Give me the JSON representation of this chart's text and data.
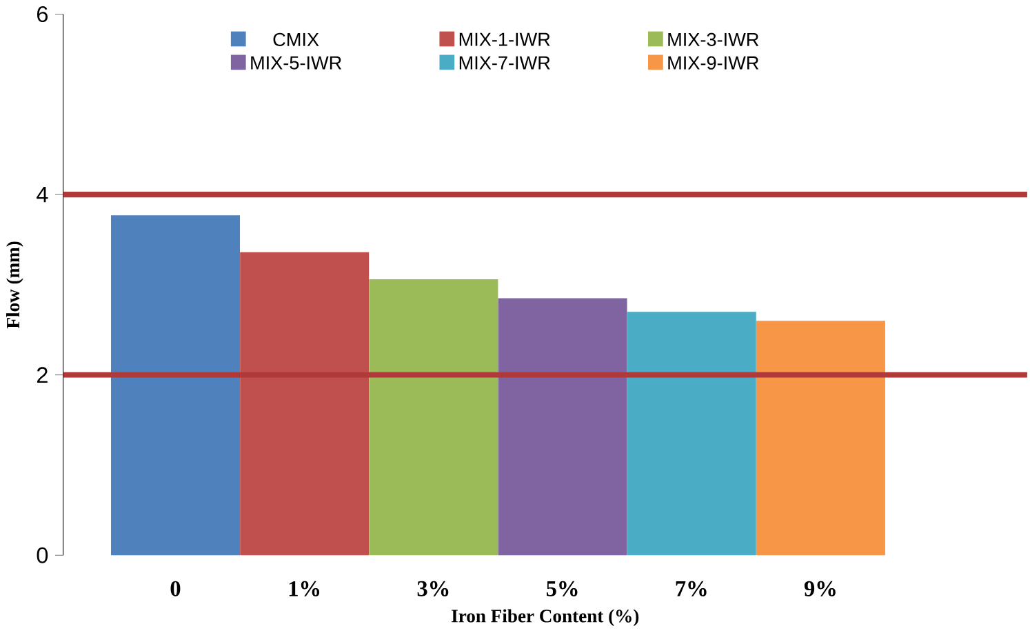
{
  "chart_data": {
    "type": "bar",
    "xlabel": "Iron Fiber Content (%)",
    "ylabel": "Flow (mm)",
    "categories": [
      "0",
      "1%",
      "3%",
      "5%",
      "7%",
      "9%"
    ],
    "series": [
      {
        "name": "CMIX",
        "color": "#4f81bd",
        "values": [
          3.77,
          null,
          null,
          null,
          null,
          null
        ]
      },
      {
        "name": "MIX-1-IWR",
        "color": "#c0504d",
        "values": [
          null,
          3.36,
          null,
          null,
          null,
          null
        ]
      },
      {
        "name": "MIX-3-IWR",
        "color": "#9bbb59",
        "values": [
          null,
          null,
          3.06,
          null,
          null,
          null
        ]
      },
      {
        "name": "MIX-5-IWR",
        "color": "#8064a2",
        "values": [
          null,
          null,
          null,
          2.85,
          null,
          null
        ]
      },
      {
        "name": "MIX-7-IWR",
        "color": "#4bacc6",
        "values": [
          null,
          null,
          null,
          null,
          2.7,
          null
        ]
      },
      {
        "name": "MIX-9-IWR",
        "color": "#f79646",
        "values": [
          null,
          null,
          null,
          null,
          null,
          2.6
        ]
      }
    ],
    "ylim": [
      0,
      6
    ],
    "yticks": [
      0,
      2,
      4,
      6
    ],
    "grid": false,
    "legend": "top",
    "ref_lines": [
      {
        "axis": "y",
        "value": 4,
        "color": "#b03a3a"
      },
      {
        "axis": "y",
        "value": 2,
        "color": "#b03a3a"
      }
    ]
  }
}
